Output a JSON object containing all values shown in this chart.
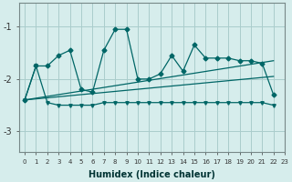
{
  "xlabel": "Humidex (Indice chaleur)",
  "bg_color": "#d6edec",
  "grid_color": "#aacccc",
  "line_color": "#006666",
  "xlim": [
    -0.5,
    23
  ],
  "ylim": [
    -3.4,
    -0.55
  ],
  "yticks": [
    -3,
    -2,
    -1
  ],
  "xticks": [
    0,
    1,
    2,
    3,
    4,
    5,
    6,
    7,
    8,
    9,
    10,
    11,
    12,
    13,
    14,
    15,
    16,
    17,
    18,
    19,
    20,
    21,
    22,
    23
  ],
  "series1_x": [
    0,
    1,
    2,
    3,
    4,
    5,
    6,
    7,
    8,
    9,
    10,
    11,
    12,
    13,
    14,
    15,
    16,
    17,
    18,
    19,
    20,
    21,
    22
  ],
  "series1_y": [
    -2.4,
    -1.75,
    -1.75,
    -1.55,
    -1.45,
    -2.2,
    -2.25,
    -1.45,
    -1.05,
    -1.05,
    -2.0,
    -2.0,
    -1.9,
    -1.55,
    -1.85,
    -1.35,
    -1.6,
    -1.6,
    -1.6,
    -1.65,
    -1.65,
    -1.7,
    -2.3
  ],
  "series2_x": [
    0,
    1,
    2,
    3,
    4,
    5,
    6,
    7,
    8,
    9,
    10,
    11,
    12,
    13,
    14,
    15,
    16,
    17,
    18,
    19,
    20,
    21,
    22
  ],
  "series2_y": [
    -2.4,
    -1.75,
    -2.45,
    -2.5,
    -2.5,
    -2.5,
    -2.5,
    -2.45,
    -2.45,
    -2.45,
    -2.45,
    -2.45,
    -2.45,
    -2.45,
    -2.45,
    -2.45,
    -2.45,
    -2.45,
    -2.45,
    -2.45,
    -2.45,
    -2.45,
    -2.5
  ],
  "line1_x": [
    0,
    22
  ],
  "line1_y": [
    -2.4,
    -1.65
  ],
  "line2_x": [
    0,
    22
  ],
  "line2_y": [
    -2.4,
    -1.95
  ]
}
